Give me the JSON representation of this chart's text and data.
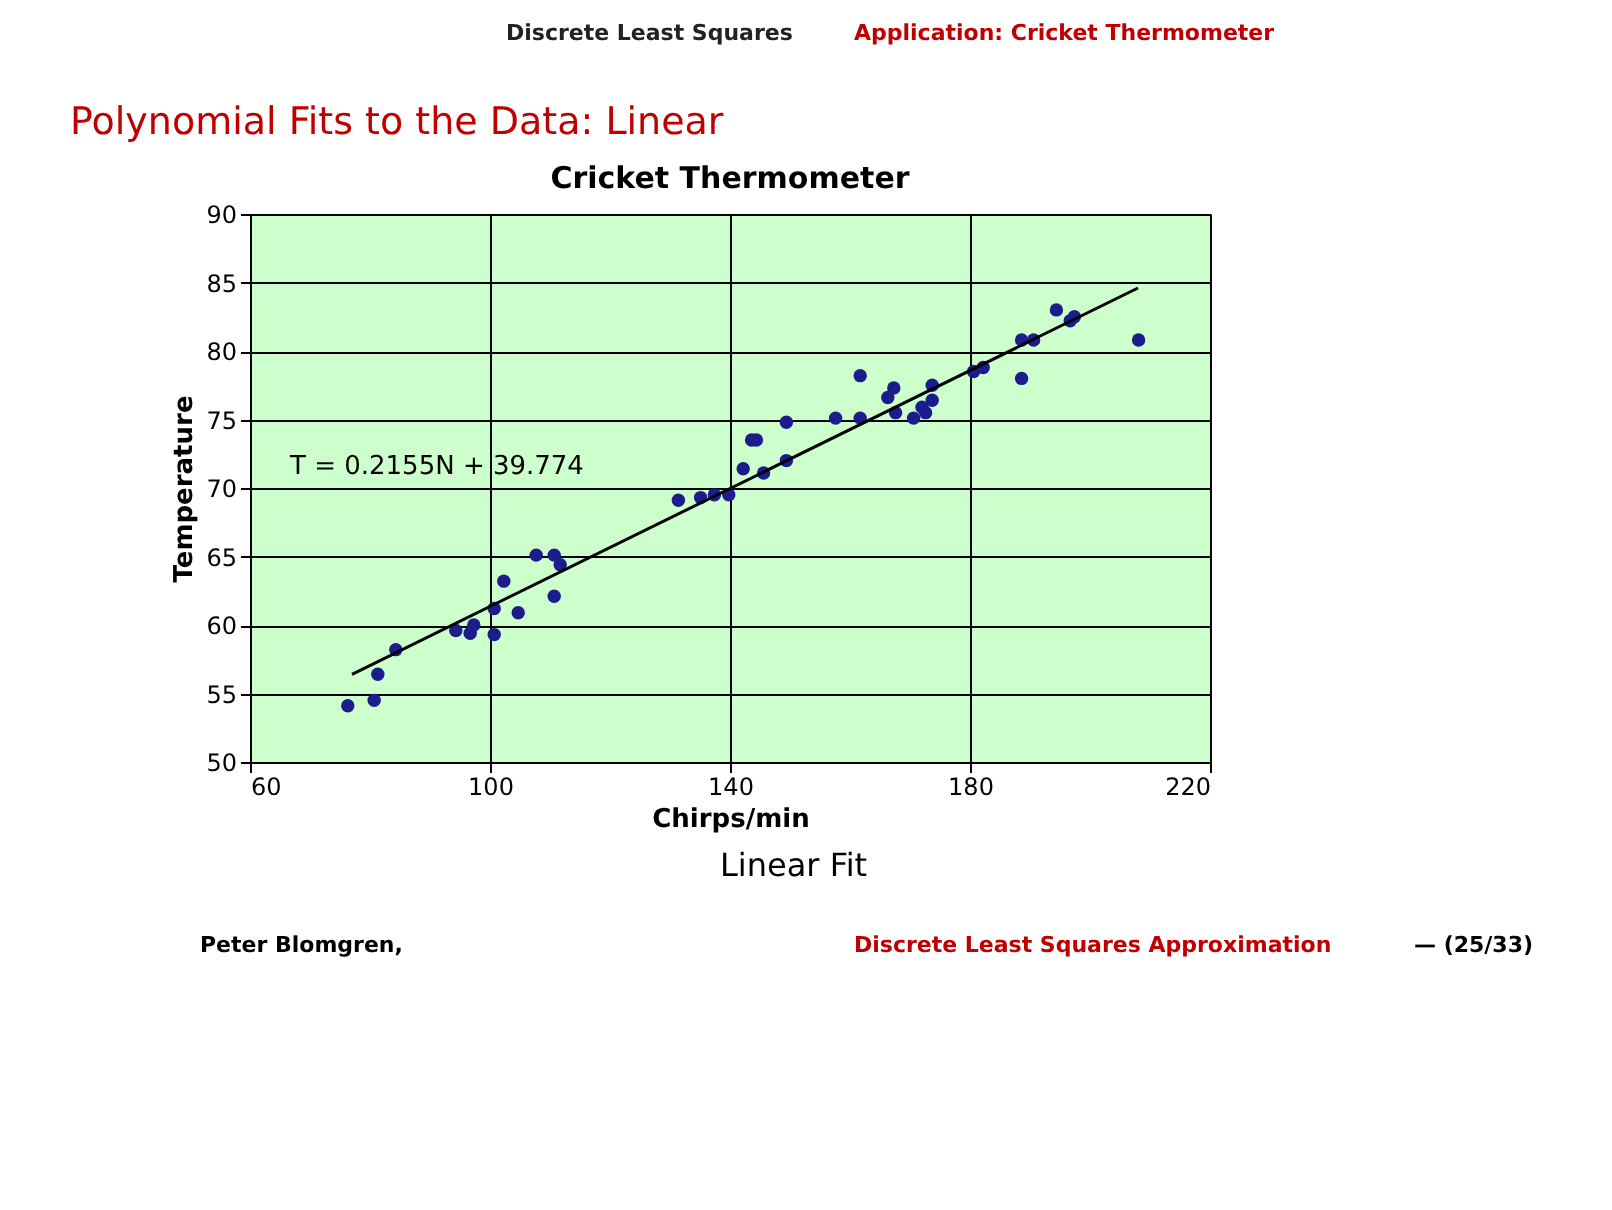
{
  "chart_data": {
    "type": "scatter",
    "title": "Cricket Thermometer",
    "xlabel": "Chirps/min",
    "ylabel": "Temperature",
    "xlim": [
      60,
      220
    ],
    "xticks": [
      60,
      100,
      140,
      180,
      220
    ],
    "ylim": [
      50,
      90
    ],
    "yticks": [
      50,
      55,
      60,
      65,
      70,
      75,
      80,
      85,
      90
    ],
    "grid": true,
    "series": [
      {
        "color": "#1c1c8c",
        "marker": "circle",
        "x": [
          76.3,
          80.7,
          81.3,
          84.3,
          94.3,
          96.7,
          97.3,
          100.7,
          100.7,
          102.3,
          104.7,
          107.7,
          110.7,
          110.7,
          111.7,
          131.4,
          135.1,
          137.4,
          139.8,
          142.2,
          143.6,
          144.4,
          145.6,
          149.4,
          149.4,
          157.6,
          161.7,
          161.7,
          166.3,
          167.3,
          167.6,
          170.6,
          172.0,
          172.6,
          173.7,
          173.7,
          180.6,
          182.2,
          188.6,
          188.6,
          190.6,
          194.4,
          196.7,
          197.4,
          208.1
        ],
        "values": [
          54.1,
          54.5,
          56.4,
          58.2,
          59.6,
          59.4,
          60.0,
          59.3,
          61.2,
          63.2,
          60.9,
          65.1,
          65.1,
          62.1,
          64.4,
          69.1,
          69.3,
          69.5,
          69.5,
          71.4,
          73.5,
          73.5,
          71.1,
          72.0,
          74.8,
          75.1,
          78.2,
          75.1,
          76.6,
          77.3,
          75.5,
          75.1,
          75.9,
          75.5,
          76.4,
          77.5,
          78.5,
          78.8,
          78.0,
          80.8,
          80.8,
          83.0,
          82.2,
          82.5,
          80.8
        ]
      },
      {
        "type": "line",
        "color": "#000000",
        "line_style": "solid",
        "x": [
          77,
          208
        ],
        "values": [
          56.4,
          84.6
        ]
      }
    ],
    "annotations": [
      "Discrete Least Squares",
      "Application: Cricket Thermometer",
      "Polynomial Fits to the Data: Linear",
      "Linear Fit",
      "Peter Blomgren,",
      "Discrete Least Squares Approximation",
      "— (25/33)",
      "T = 0.2155N + 39.774"
    ]
  }
}
